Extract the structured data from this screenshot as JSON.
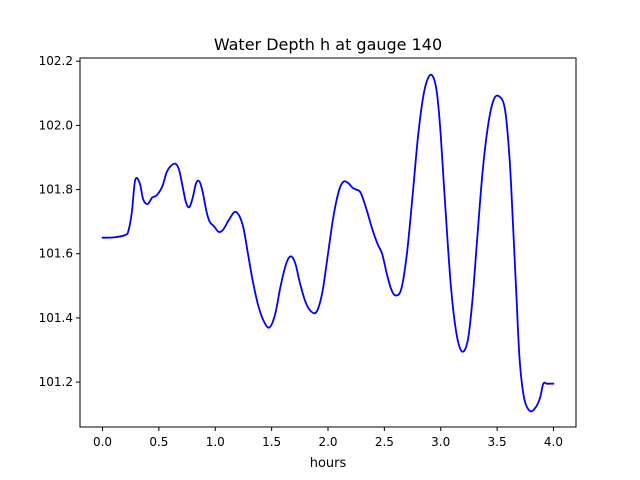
{
  "chart_data": {
    "type": "line",
    "title": "Water Depth h at gauge 140",
    "xlabel": "hours",
    "ylabel": "",
    "xlim": [
      -0.2,
      4.2
    ],
    "ylim": [
      101.06,
      102.21
    ],
    "grid": false,
    "legend": "none",
    "xticks": [
      0.0,
      0.5,
      1.0,
      1.5,
      2.0,
      2.5,
      3.0,
      3.5,
      4.0
    ],
    "xtick_labels": [
      "0.0",
      "0.5",
      "1.0",
      "1.5",
      "2.0",
      "2.5",
      "3.0",
      "3.5",
      "4.0"
    ],
    "yticks": [
      101.2,
      101.4,
      101.6,
      101.8,
      102.0,
      102.2
    ],
    "ytick_labels": [
      "101.2",
      "101.4",
      "101.6",
      "101.8",
      "102.0",
      "102.2"
    ],
    "series": [
      {
        "color": "#0000ff",
        "x": [
          0.0,
          0.1,
          0.2,
          0.23,
          0.26,
          0.29,
          0.33,
          0.36,
          0.4,
          0.44,
          0.48,
          0.53,
          0.57,
          0.61,
          0.65,
          0.68,
          0.71,
          0.74,
          0.77,
          0.8,
          0.83,
          0.86,
          0.89,
          0.92,
          0.95,
          0.99,
          1.03,
          1.07,
          1.12,
          1.17,
          1.21,
          1.25,
          1.29,
          1.33,
          1.38,
          1.43,
          1.48,
          1.53,
          1.58,
          1.63,
          1.67,
          1.71,
          1.75,
          1.8,
          1.85,
          1.9,
          1.95,
          2.0,
          2.05,
          2.1,
          2.14,
          2.18,
          2.22,
          2.25,
          2.29,
          2.34,
          2.39,
          2.44,
          2.48,
          2.52,
          2.56,
          2.6,
          2.65,
          2.7,
          2.75,
          2.8,
          2.85,
          2.9,
          2.94,
          2.97,
          3.0,
          3.04,
          3.09,
          3.14,
          3.19,
          3.24,
          3.28,
          3.32,
          3.37,
          3.42,
          3.47,
          3.52,
          3.57,
          3.61,
          3.64,
          3.67,
          3.7,
          3.74,
          3.79,
          3.84,
          3.88,
          3.91,
          3.94,
          3.97,
          4.0
        ],
        "values": [
          101.65,
          101.651,
          101.658,
          101.672,
          101.73,
          101.83,
          101.82,
          101.77,
          101.755,
          101.775,
          101.782,
          101.81,
          101.855,
          101.875,
          101.88,
          101.86,
          101.81,
          101.76,
          101.745,
          101.775,
          101.82,
          101.825,
          101.79,
          101.735,
          101.7,
          101.685,
          101.668,
          101.675,
          101.705,
          101.73,
          101.72,
          101.68,
          101.6,
          101.52,
          101.44,
          101.39,
          101.37,
          101.41,
          101.5,
          101.57,
          101.592,
          101.57,
          101.51,
          101.45,
          101.42,
          101.42,
          101.48,
          101.6,
          101.72,
          101.8,
          101.825,
          101.82,
          101.805,
          101.8,
          101.79,
          101.74,
          101.68,
          101.63,
          101.6,
          101.54,
          101.49,
          101.47,
          101.49,
          101.6,
          101.78,
          101.97,
          102.1,
          102.155,
          102.145,
          102.09,
          101.97,
          101.75,
          101.5,
          101.35,
          101.295,
          101.33,
          101.45,
          101.63,
          101.85,
          102.0,
          102.08,
          102.09,
          102.05,
          101.9,
          101.7,
          101.48,
          101.27,
          101.15,
          101.11,
          101.12,
          101.15,
          101.195,
          101.195,
          101.195,
          101.195
        ]
      }
    ]
  }
}
